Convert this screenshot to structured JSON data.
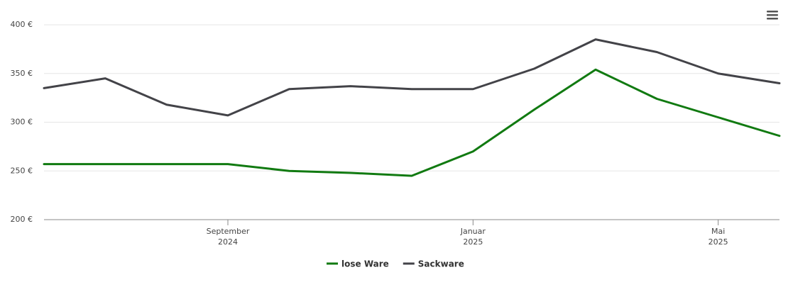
{
  "chart_data": {
    "type": "line",
    "x": [
      "2024-06",
      "2024-07",
      "2024-08",
      "2024-09",
      "2024-10",
      "2024-11",
      "2024-12",
      "2025-01",
      "2025-02",
      "2025-03",
      "2025-04",
      "2025-05",
      "2025-06"
    ],
    "series": [
      {
        "name": "lose Ware",
        "color": "#117a11",
        "values": [
          257,
          257,
          257,
          257,
          250,
          248,
          245,
          270,
          313,
          354,
          324,
          305,
          286
        ]
      },
      {
        "name": "Sackware",
        "color": "#434348",
        "values": [
          335,
          345,
          318,
          307,
          334,
          337,
          334,
          334,
          355,
          385,
          372,
          350,
          340
        ]
      }
    ],
    "xlim": [
      "2024-06",
      "2025-06"
    ],
    "xticks": [
      {
        "value": "2024-09",
        "label": "September\n2024"
      },
      {
        "value": "2025-01",
        "label": "Januar\n2025"
      },
      {
        "value": "2025-05",
        "label": "Mai\n2025"
      }
    ],
    "ylim": [
      200,
      400
    ],
    "yticks": [
      {
        "value": 200,
        "label": "200 €"
      },
      {
        "value": 250,
        "label": "250 €"
      },
      {
        "value": 300,
        "label": "300 €"
      },
      {
        "value": 350,
        "label": "350 €"
      },
      {
        "value": 400,
        "label": "400 €"
      }
    ],
    "grid": true,
    "legend": "bottom"
  }
}
